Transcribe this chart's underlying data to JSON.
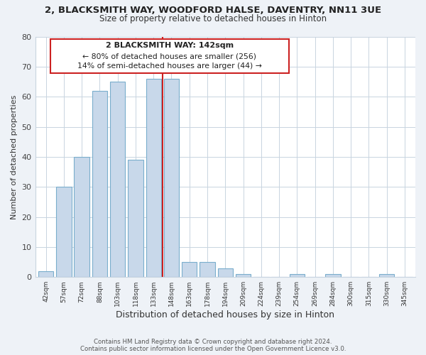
{
  "title": "2, BLACKSMITH WAY, WOODFORD HALSE, DAVENTRY, NN11 3UE",
  "subtitle": "Size of property relative to detached houses in Hinton",
  "xlabel": "Distribution of detached houses by size in Hinton",
  "ylabel": "Number of detached properties",
  "bar_color": "#c8d8ea",
  "bar_edge_color": "#7aaecc",
  "bin_labels": [
    "42sqm",
    "57sqm",
    "72sqm",
    "88sqm",
    "103sqm",
    "118sqm",
    "133sqm",
    "148sqm",
    "163sqm",
    "178sqm",
    "194sqm",
    "209sqm",
    "224sqm",
    "239sqm",
    "254sqm",
    "269sqm",
    "284sqm",
    "300sqm",
    "315sqm",
    "330sqm",
    "345sqm"
  ],
  "values": [
    2,
    30,
    40,
    62,
    65,
    39,
    66,
    66,
    5,
    5,
    3,
    1,
    0,
    0,
    1,
    0,
    1,
    0,
    0,
    1,
    0
  ],
  "red_line_x": 7,
  "red_line_color": "#cc2222",
  "ylim": [
    0,
    80
  ],
  "yticks": [
    0,
    10,
    20,
    30,
    40,
    50,
    60,
    70,
    80
  ],
  "annotation_title": "2 BLACKSMITH WAY: 142sqm",
  "annotation_line1": "← 80% of detached houses are smaller (256)",
  "annotation_line2": "14% of semi-detached houses are larger (44) →",
  "annotation_box_color": "#ffffff",
  "annotation_box_edge": "#cc2222",
  "footer_line1": "Contains HM Land Registry data © Crown copyright and database right 2024.",
  "footer_line2": "Contains public sector information licensed under the Open Government Licence v3.0.",
  "bg_color": "#eef2f7",
  "plot_bg_color": "#ffffff",
  "grid_color": "#c8d4e0"
}
